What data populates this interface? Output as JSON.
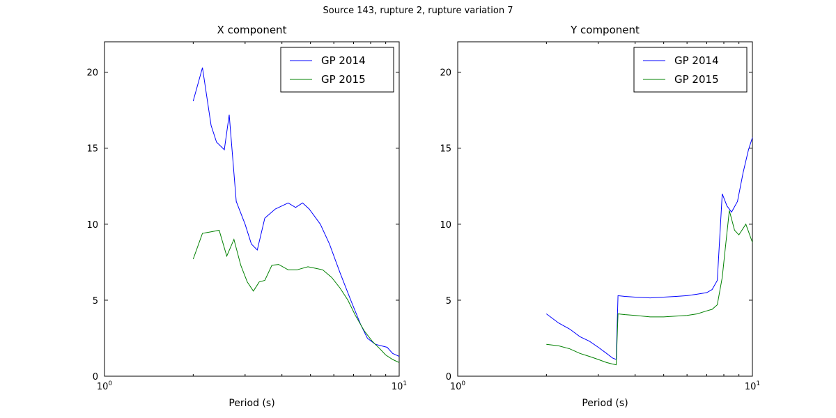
{
  "figure": {
    "title": "Source 143, rupture 2, rupture variation 7",
    "background": "#ffffff",
    "text_color": "#000000",
    "axis_color": "#000000"
  },
  "chart_data": [
    {
      "type": "line",
      "title": "X component",
      "xlabel": "Period (s)",
      "ylabel": "",
      "xscale": "log",
      "xlim": [
        1,
        10
      ],
      "ylim": [
        0,
        22
      ],
      "yticks": [
        0,
        5,
        10,
        15,
        20
      ],
      "xticks": [
        {
          "value": 1,
          "label": "10^0"
        },
        {
          "value": 10,
          "label": "10^1"
        }
      ],
      "xminor": [
        2,
        3,
        4,
        5,
        6,
        7,
        8,
        9
      ],
      "grid": false,
      "legend": {
        "location": "upper right"
      },
      "series": [
        {
          "name": "GP 2014",
          "color": "#0000ff",
          "x": [
            2.0,
            2.15,
            2.3,
            2.4,
            2.55,
            2.65,
            2.8,
            3.0,
            3.15,
            3.3,
            3.5,
            3.8,
            4.0,
            4.2,
            4.45,
            4.7,
            4.95,
            5.4,
            5.8,
            6.3,
            6.85,
            7.4,
            7.8,
            8.3,
            8.7,
            9.1,
            9.5,
            10.0
          ],
          "y": [
            18.1,
            20.3,
            16.5,
            15.4,
            14.9,
            17.2,
            11.5,
            10.0,
            8.7,
            8.3,
            10.4,
            11.0,
            11.2,
            11.4,
            11.1,
            11.4,
            11.0,
            10.0,
            8.7,
            6.8,
            5.0,
            3.4,
            2.5,
            2.1,
            2.0,
            1.9,
            1.5,
            1.3
          ]
        },
        {
          "name": "GP 2015",
          "color": "#008000",
          "x": [
            2.0,
            2.15,
            2.3,
            2.45,
            2.6,
            2.75,
            2.9,
            3.05,
            3.2,
            3.35,
            3.5,
            3.7,
            3.9,
            4.2,
            4.5,
            4.9,
            5.2,
            5.5,
            5.9,
            6.3,
            6.7,
            7.1,
            7.6,
            8.1,
            8.6,
            9.0,
            9.5,
            10.0
          ],
          "y": [
            7.7,
            9.4,
            9.5,
            9.6,
            7.9,
            9.0,
            7.3,
            6.2,
            5.6,
            6.2,
            6.3,
            7.3,
            7.35,
            7.0,
            7.0,
            7.2,
            7.1,
            7.0,
            6.5,
            5.8,
            5.0,
            4.0,
            3.0,
            2.3,
            1.8,
            1.4,
            1.1,
            0.9
          ]
        }
      ]
    },
    {
      "type": "line",
      "title": "Y component",
      "xlabel": "Period (s)",
      "ylabel": "",
      "xscale": "log",
      "xlim": [
        1,
        10
      ],
      "ylim": [
        0,
        22
      ],
      "yticks": [
        0,
        5,
        10,
        15,
        20
      ],
      "xticks": [
        {
          "value": 1,
          "label": "10^0"
        },
        {
          "value": 10,
          "label": "10^1"
        }
      ],
      "xminor": [
        2,
        3,
        4,
        5,
        6,
        7,
        8,
        9
      ],
      "grid": false,
      "legend": {
        "location": "upper right"
      },
      "series": [
        {
          "name": "GP 2014",
          "color": "#0000ff",
          "x": [
            2.0,
            2.2,
            2.4,
            2.6,
            2.8,
            3.0,
            3.2,
            3.35,
            3.45,
            3.5,
            3.7,
            4.0,
            4.5,
            5.0,
            5.5,
            6.0,
            6.5,
            7.0,
            7.3,
            7.6,
            7.9,
            8.2,
            8.5,
            8.9,
            9.3,
            9.7,
            10.0
          ],
          "y": [
            4.1,
            3.5,
            3.1,
            2.6,
            2.3,
            1.9,
            1.5,
            1.2,
            1.1,
            5.3,
            5.25,
            5.2,
            5.15,
            5.2,
            5.25,
            5.3,
            5.4,
            5.5,
            5.7,
            6.3,
            12.0,
            11.2,
            10.8,
            11.5,
            13.4,
            14.9,
            15.7
          ]
        },
        {
          "name": "GP 2015",
          "color": "#008000",
          "x": [
            2.0,
            2.2,
            2.4,
            2.6,
            2.8,
            3.0,
            3.2,
            3.35,
            3.45,
            3.5,
            3.7,
            4.0,
            4.5,
            5.0,
            5.5,
            6.0,
            6.5,
            7.0,
            7.3,
            7.6,
            7.9,
            8.1,
            8.35,
            8.7,
            9.0,
            9.5,
            10.0
          ],
          "y": [
            2.1,
            2.0,
            1.8,
            1.5,
            1.3,
            1.1,
            0.9,
            0.8,
            0.75,
            4.1,
            4.05,
            4.0,
            3.9,
            3.9,
            3.95,
            4.0,
            4.1,
            4.3,
            4.4,
            4.7,
            6.5,
            8.5,
            10.9,
            9.6,
            9.3,
            10.0,
            8.8
          ]
        }
      ]
    }
  ]
}
